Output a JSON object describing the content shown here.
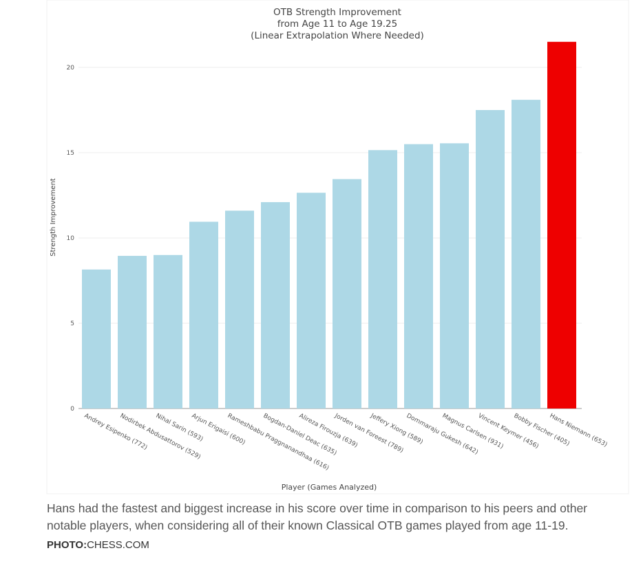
{
  "chart_data": {
    "type": "bar",
    "title_lines": [
      "OTB Strength Improvement",
      "from Age 11 to Age 19.25",
      "(Linear Extrapolation Where Needed)"
    ],
    "xlabel": "Player (Games Analyzed)",
    "ylabel": "Strength Improvement",
    "ylim": [
      0,
      22
    ],
    "yticks": [
      0,
      5,
      10,
      15,
      20
    ],
    "categories": [
      "Andrey Esipenko (772)",
      "Nodirbek Abdusattorov (529)",
      "Nihal Sarin (593)",
      "Arjun Erigaisi (600)",
      "Rameshbabu Praggnanandhaa (616)",
      "Bogdan-Daniel Deac (635)",
      "Alireza Firouzja (639)",
      "Jorden van Foreest (789)",
      "Jeffery Xiong (589)",
      "Dommaraju Gukesh (642)",
      "Magnus Carlsen (931)",
      "Vincent Keymer (456)",
      "Bobby Fischer (405)",
      "Hans Niemann (653)"
    ],
    "values": [
      8.15,
      8.95,
      9.0,
      10.95,
      11.6,
      12.1,
      12.65,
      13.45,
      15.15,
      15.5,
      15.55,
      17.5,
      18.1,
      21.5
    ],
    "colors": [
      "#add8e6",
      "#add8e6",
      "#add8e6",
      "#add8e6",
      "#add8e6",
      "#add8e6",
      "#add8e6",
      "#add8e6",
      "#add8e6",
      "#add8e6",
      "#add8e6",
      "#add8e6",
      "#add8e6",
      "#ee0000"
    ],
    "grid": true
  },
  "caption": "Hans had the fastest and biggest increase in his score over time in comparison to his peers and other notable players, when considering all of their known Classical OTB games played from age 11-19.",
  "credit": {
    "label": "PHOTO:",
    "source": "CHESS.COM"
  }
}
